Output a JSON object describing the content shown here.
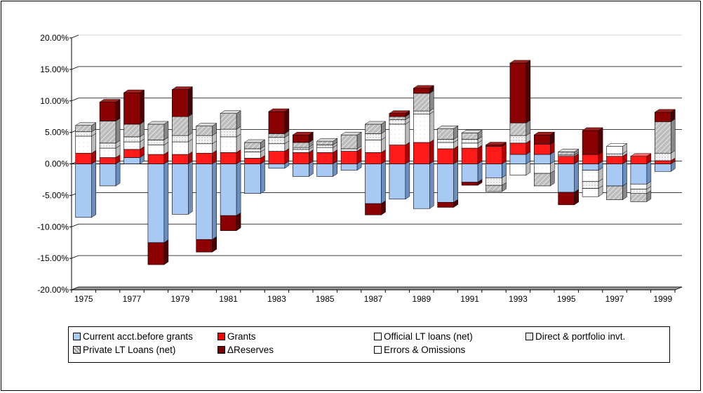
{
  "chart_data": {
    "type": "bar",
    "stacked": true,
    "style": "3d",
    "categories": [
      "1975",
      "1976",
      "1977",
      "1978",
      "1979",
      "1980",
      "1981",
      "1982",
      "1983",
      "1984",
      "1985",
      "1986",
      "1987",
      "1988",
      "1989",
      "1990",
      "1991",
      "1992",
      "1993",
      "1994",
      "1995",
      "1996",
      "1997",
      "1998",
      "1999"
    ],
    "x_tick_labels": [
      "1975",
      "1977",
      "1979",
      "1981",
      "1983",
      "1985",
      "1987",
      "1989",
      "1991",
      "1993",
      "1995",
      "1997",
      "1999"
    ],
    "y_tick_labels": [
      "20.00%",
      "15.00%",
      "10.00%",
      "5.00%",
      "0.00%",
      "-5.00%",
      "-10.00%",
      "-15.00%",
      "-20.00%"
    ],
    "ylim": [
      -0.2,
      0.2
    ],
    "grid": true,
    "legend_position": "bottom",
    "series": [
      {
        "name": "Current acct.before grants",
        "color": "#a9c9f5",
        "values": [
          -0.085,
          -0.035,
          0.01,
          -0.125,
          -0.08,
          -0.12,
          -0.082,
          -0.047,
          -0.007,
          -0.02,
          -0.02,
          -0.01,
          -0.063,
          -0.056,
          -0.071,
          -0.061,
          -0.029,
          -0.022,
          0.015,
          0.015,
          -0.045,
          -0.01,
          -0.035,
          -0.032,
          -0.012
        ]
      },
      {
        "name": "Grants",
        "color": "#ff0000",
        "values": [
          0.017,
          0.01,
          0.013,
          0.015,
          0.015,
          0.017,
          0.018,
          0.009,
          0.02,
          0.018,
          0.018,
          0.02,
          0.018,
          0.03,
          0.034,
          0.024,
          0.025,
          0.028,
          0.018,
          0.016,
          0.012,
          0.015,
          0.012,
          0.012,
          0.005
        ]
      },
      {
        "name": "Official LT loans (net)",
        "color": "#ffffff",
        "values": [
          0.027,
          0.015,
          0.012,
          0.015,
          0.02,
          0.015,
          0.025,
          0.01,
          0.012,
          0.005,
          0.008,
          0.0,
          0.02,
          0.033,
          0.045,
          0.01,
          0.008,
          0.0,
          0.0,
          -0.015,
          0.0,
          -0.018,
          0.0,
          -0.008,
          0.0
        ]
      },
      {
        "name": "Direct & portfolio invt.",
        "color": "#f0f0f0",
        "values": [
          0.007,
          0.008,
          0.008,
          0.008,
          0.01,
          0.013,
          0.012,
          0.005,
          0.01,
          0.003,
          0.004,
          0.004,
          0.01,
          0.007,
          0.005,
          0.005,
          0.006,
          -0.012,
          0.012,
          0.0,
          0.002,
          -0.011,
          0.004,
          -0.007,
          0.012
        ]
      },
      {
        "name": "Private LT Loans (net)",
        "color": "#b5b5b5",
        "values": [
          0.01,
          0.035,
          0.02,
          0.025,
          0.03,
          0.015,
          0.025,
          0.01,
          0.006,
          0.008,
          0.006,
          0.022,
          0.015,
          0.005,
          0.028,
          0.017,
          0.01,
          -0.01,
          0.02,
          -0.02,
          0.005,
          0.0,
          -0.022,
          -0.013,
          0.05
        ]
      },
      {
        "name": "ΔReserves",
        "color": "#7a0000",
        "values": [
          0.0,
          0.03,
          0.05,
          -0.035,
          0.043,
          -0.02,
          -0.024,
          0.0,
          0.035,
          0.012,
          0.0,
          0.0,
          -0.018,
          0.005,
          0.008,
          -0.008,
          -0.005,
          0.002,
          0.095,
          0.015,
          -0.02,
          0.038,
          0.0,
          0.0,
          0.015
        ]
      },
      {
        "name": "Errors & Omissions",
        "color": "#ffffff",
        "values": [
          0.0,
          0.0,
          0.0,
          0.0,
          0.0,
          0.0,
          0.0,
          0.0,
          0.0,
          0.0,
          0.0,
          0.0,
          0.0,
          0.0,
          0.0,
          0.0,
          0.0,
          0.0,
          -0.018,
          0.0,
          0.0,
          -0.013,
          0.012,
          0.0,
          0.0
        ]
      }
    ]
  },
  "legend": {
    "items": [
      {
        "label": "Current acct.before grants",
        "color": "#a9c9f5"
      },
      {
        "label": "Grants",
        "color": "#ff0000"
      },
      {
        "label": "Official LT loans (net)",
        "color": "#ffffff"
      },
      {
        "label": "Direct & portfolio invt.",
        "color": "#f0f0f0"
      },
      {
        "label": "Private LT Loans (net)",
        "color": "#b5b5b5"
      },
      {
        "label": "ΔReserves",
        "color": "#7a0000"
      },
      {
        "label": "Errors & Omissions",
        "color": "#ffffff"
      }
    ]
  }
}
